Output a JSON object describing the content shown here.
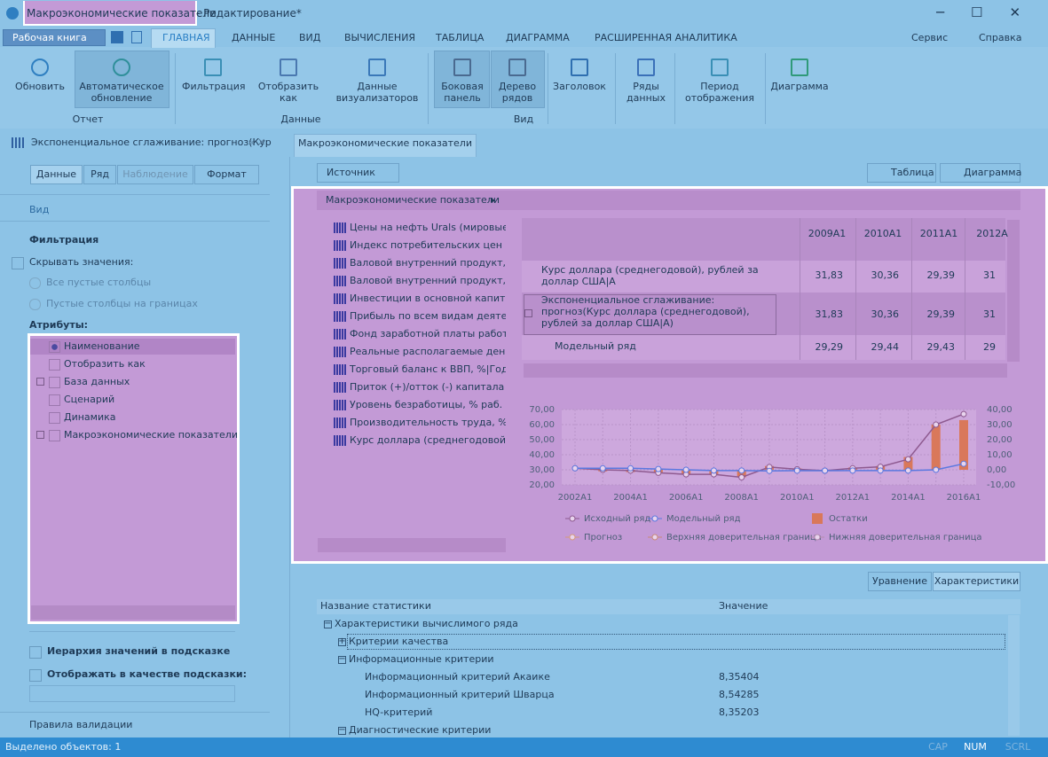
{
  "window": {
    "title": "Макроэкономические показатели",
    "title_rest": " - Редактирование*"
  },
  "ribbon": {
    "workbook": "Рабочая книга",
    "tabs": [
      "ГЛАВНАЯ",
      "ДАННЫЕ",
      "ВИД",
      "ВЫЧИСЛЕНИЯ",
      "ТАБЛИЦА",
      "ДИАГРАММА",
      "РАСШИРЕННАЯ АНАЛИТИКА"
    ],
    "menus": [
      "Сервис",
      "Справка"
    ],
    "buttons": [
      "Обновить",
      "Автоматическое обновление",
      "Фильтрация",
      "Отобразить как",
      "Данные визуализаторов",
      "Боковая панель",
      "Дерево рядов",
      "Заголовок",
      "Ряды данных",
      "Период отображения",
      "Диаграмма"
    ],
    "groups": [
      "Отчет",
      "Данные",
      "Вид"
    ]
  },
  "doc_tabs": {
    "side_doc": "Экспоненциальное сглаживание: прогноз(Кур",
    "tab": "Макроэкономические показатели"
  },
  "left_panel": {
    "tabs": [
      "Данные",
      "Ряд",
      "Наблюдение",
      "Формат"
    ],
    "section": "Вид",
    "filter_title": "Фильтрация",
    "hide_values": "Скрывать значения:",
    "radios": [
      "Все пустые столбцы",
      "Пустые столбцы на границах"
    ],
    "attributes_title": "Атрибуты:",
    "attributes": [
      {
        "label": "Наименование",
        "selected": true
      },
      {
        "label": "Отобразить как"
      },
      {
        "label": "База данных",
        "expandable": true
      },
      {
        "label": "Сценарий"
      },
      {
        "label": "Динамика"
      },
      {
        "label": "Макроэкономические показатели",
        "expandable": true
      }
    ],
    "hierarchy": "Иерархия значений в подсказке",
    "tooltip": "Отображать в качестве подсказки:",
    "validation": "Правила валидации"
  },
  "toolbar": {
    "source": "Источник",
    "table": "Таблица",
    "chart": "Диаграмма"
  },
  "panel_header": "Макроэкономические показатели",
  "indicators": [
    "Цены на нефть Urals (мировые), д",
    "Индекс  потребительских цен в с",
    "Валовой внутренний продукт, Те",
    "Валовой внутренний продукт, Ин",
    "Инвестиции в основной капитал",
    "Прибыль по всем видам деятель",
    "Фонд заработной платы работни",
    "Реальные располагаемые денеж",
    "Торговый баланс к ВВП, %|Годов",
    "Приток (+)/отток (-) капитала к В",
    "Уровень безработицы, % раб. си",
    "Производительность труда, %|Го",
    "Курс доллара (среднегодовой), ру"
  ],
  "data_table": {
    "columns": [
      "2009A1",
      "2010A1",
      "2011A1",
      "2012A"
    ],
    "rows": [
      {
        "name": "Курс доллара (среднегодовой), рублей за доллар США|A",
        "cells": [
          "31,83",
          "30,36",
          "29,39",
          "31"
        ]
      },
      {
        "name": "Экспоненциальное сглаживание: прогноз(Курс доллара (среднегодовой), рублей за доллар США|A)",
        "cells": [
          "31,83",
          "30,36",
          "29,39",
          "31"
        ]
      },
      {
        "name": "Модельный ряд",
        "cells": [
          "29,29",
          "29,44",
          "29,43",
          "29"
        ]
      }
    ]
  },
  "chart": {
    "type": "line",
    "categories": [
      "2002A1",
      null,
      "2004A1",
      null,
      "2006A1",
      null,
      "2008A1",
      null,
      "2010A1",
      null,
      "2012A1",
      null,
      "2014A1",
      null,
      "2016A1"
    ],
    "ylim": [
      20,
      70
    ],
    "yticks": [
      {
        "value": 20,
        "label": "20,00"
      },
      {
        "value": 30,
        "label": "30,00"
      },
      {
        "value": 40,
        "label": "40,00"
      },
      {
        "value": 50,
        "label": "50,00"
      },
      {
        "value": 60,
        "label": "60,00"
      },
      {
        "value": 70,
        "label": "70,00"
      }
    ],
    "y2lim": [
      -10,
      40
    ],
    "y2ticks": [
      {
        "value": -10,
        "label": "-10,00"
      },
      {
        "value": 0,
        "label": "0,00"
      },
      {
        "value": 10,
        "label": "10,00"
      },
      {
        "value": 20,
        "label": "20,00"
      },
      {
        "value": 30,
        "label": "30,00"
      },
      {
        "value": 40,
        "label": "40,00"
      }
    ],
    "grid": true,
    "series": [
      {
        "name": "Исходный ряд",
        "color": "#8e5a90",
        "type": "line",
        "values": [
          31,
          30,
          29.5,
          28,
          27,
          27,
          25,
          31.83,
          30.36,
          29.39,
          31,
          32,
          37,
          60,
          67
        ]
      },
      {
        "name": "Модельный ряд",
        "color": "#5a78e0",
        "type": "line",
        "values": [
          31,
          31,
          31,
          30.5,
          30,
          29.5,
          29.5,
          29.29,
          29.44,
          29.43,
          29.5,
          29.5,
          29.5,
          30,
          34
        ]
      },
      {
        "name": "Остатки",
        "color": "#d9785a",
        "type": "bar",
        "axis": "y2",
        "values": [
          0,
          -1,
          -1.5,
          -2,
          -3,
          -3,
          -5,
          2.5,
          0.9,
          0,
          1.5,
          2.5,
          8.5,
          30,
          33
        ]
      }
    ],
    "legend_more": [
      {
        "name": "Прогноз",
        "color": "#d59a7a"
      },
      {
        "name": "Верхняя доверительная граница",
        "color": "#c98a78"
      },
      {
        "name": "Нижняя доверительная граница",
        "color": "#b48cae"
      }
    ]
  },
  "stats": {
    "buttons": [
      "Уравнение",
      "Характеристики"
    ],
    "headers": [
      "Название статистики",
      "Значение"
    ],
    "tree": [
      {
        "label": "Характеристики вычислимого ряда",
        "expanded": true,
        "children": [
          {
            "label": "Критерии качества",
            "expanded": false,
            "children": []
          },
          {
            "label": "Информационные критерии",
            "expanded": true,
            "children": [
              {
                "label": "Информационный критерий Акаике",
                "value": "8,35404"
              },
              {
                "label": "Информационный критерий Шварца",
                "value": "8,54285"
              },
              {
                "label": "HQ-критерий",
                "value": "8,35203"
              }
            ]
          },
          {
            "label": "Диагностические критерии",
            "expanded": true,
            "children": []
          }
        ]
      }
    ]
  },
  "status": {
    "text": "Выделено объектов: 1",
    "indicators": [
      "CAP",
      "NUM",
      "SCRL"
    ]
  }
}
